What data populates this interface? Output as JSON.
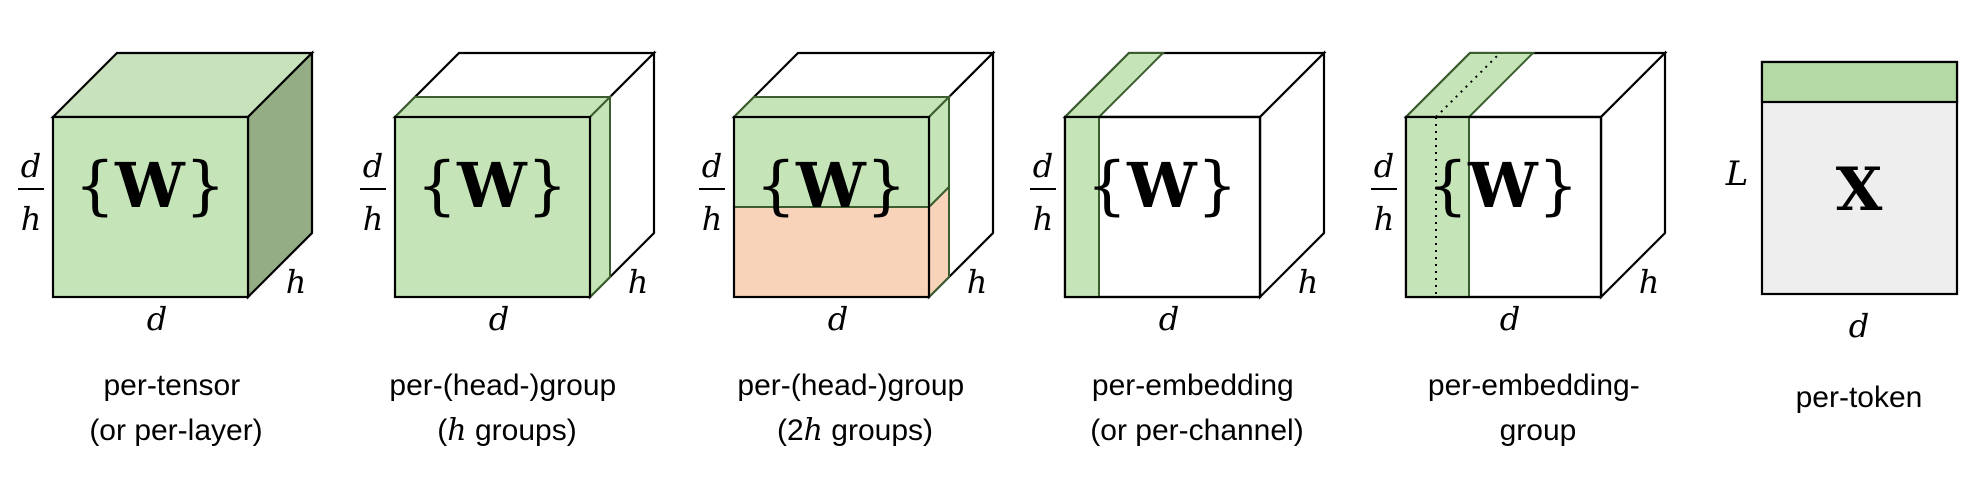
{
  "colors": {
    "green": "#c5e5b8",
    "green_top": "#c8e2bd",
    "green_side": "#94ad85",
    "green_edge": "#3a5e2e",
    "orange": "#f8d3b9",
    "gray": "#eeeeee",
    "stroke": "#000000"
  },
  "math": {
    "d": "d",
    "h": "h",
    "W": "W",
    "X": "X",
    "L": "L",
    "brace_open": "{",
    "brace_close": "}",
    "two": "2"
  },
  "panels": [
    {
      "key": "per-tensor",
      "caption_lines": [
        "per-tensor",
        "(or per-layer)"
      ]
    },
    {
      "key": "per-head-group",
      "caption_line1": "per-(head-)group",
      "caption_line2_pre": "(",
      "caption_line2_post": " groups)"
    },
    {
      "key": "per-head-group-2h",
      "caption_line1": "per-(head-)group",
      "caption_line2_pre": "(",
      "caption_line2_post": " groups)"
    },
    {
      "key": "per-embedding",
      "caption_lines": [
        "per-embedding",
        "(or per-channel)"
      ]
    },
    {
      "key": "per-embedding-group",
      "caption_lines": [
        "per-embedding-",
        "group"
      ]
    },
    {
      "key": "per-token",
      "caption_lines": [
        "per-token"
      ]
    }
  ]
}
